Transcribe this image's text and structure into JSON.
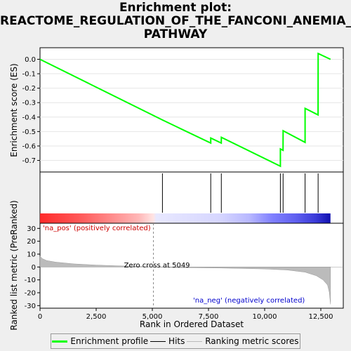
{
  "title_lines": [
    "Enrichment plot:",
    "REACTOME_REGULATION_OF_THE_FANCONI_ANEMIA_",
    "PATHWAY"
  ],
  "chart_data": {
    "type": "line",
    "es_ylabel": "Enrichment score (ES)",
    "rank_ylabel": "Ranked list metric (PreRanked)",
    "xlabel": "Rank in Ordered Dataset",
    "xlim": [
      0,
      13500
    ],
    "es_ylim": [
      -0.78,
      0.08
    ],
    "rank_ylim": [
      -32,
      34
    ],
    "x_ticks": [
      0,
      2500,
      5000,
      7500,
      10000,
      12500
    ],
    "x_tick_labels": [
      "0",
      "2,500",
      "5,000",
      "7,500",
      "10,000",
      "12,500"
    ],
    "es_ticks": [
      0.0,
      -0.1,
      -0.2,
      -0.3,
      -0.4,
      -0.5,
      -0.6,
      -0.7
    ],
    "es_tick_labels": [
      "0.0",
      "-0.1",
      "-0.2",
      "-0.3",
      "-0.4",
      "-0.5",
      "-0.6",
      "-0.7"
    ],
    "rank_ticks": [
      30,
      20,
      10,
      0,
      -10,
      -20,
      -30
    ],
    "rank_tick_labels": [
      "30",
      "20",
      "10",
      "0",
      "-10",
      "-20",
      "-30"
    ],
    "enrichment_profile": {
      "x": [
        0,
        5449,
        7599,
        7600,
        8070,
        8071,
        10699,
        10700,
        10820,
        10821,
        11799,
        11800,
        12379,
        12380,
        12930
      ],
      "y": [
        0.0,
        -0.42,
        -0.58,
        -0.545,
        -0.58,
        -0.54,
        -0.74,
        -0.62,
        -0.63,
        -0.495,
        -0.575,
        -0.34,
        -0.385,
        0.04,
        0.0
      ]
    },
    "hits": [
      5450,
      7600,
      8071,
      10700,
      10821,
      11800,
      12380
    ],
    "ranking_metric": {
      "x": [
        0,
        100,
        300,
        700,
        1500,
        2500,
        3500,
        4500,
        5049,
        6000,
        8000,
        10000,
        11000,
        11800,
        12300,
        12600,
        12800,
        12880,
        12930
      ],
      "y": [
        8.5,
        6.5,
        5.0,
        3.8,
        2.4,
        1.5,
        0.9,
        0.4,
        0.0,
        -0.4,
        -0.8,
        -1.5,
        -2.3,
        -4.0,
        -6.8,
        -10.0,
        -14.0,
        -20.0,
        -29.0
      ]
    },
    "zero_cross_label": "Zero cross at 5049",
    "zero_cross_x": 5049,
    "na_pos_label": "'na_pos' (positively correlated)",
    "na_neg_label": "'na_neg' (negatively correlated)",
    "legend": [
      "Enrichment profile",
      "Hits",
      "Ranking metric scores"
    ],
    "colors": {
      "profile": "#00ff00",
      "hits": "#000000",
      "metric": "#bbbbbb",
      "pos": "#ff0000",
      "neg": "#0000ff",
      "na_pos_text": "#cc0000",
      "na_neg_text": "#0000cc"
    }
  }
}
